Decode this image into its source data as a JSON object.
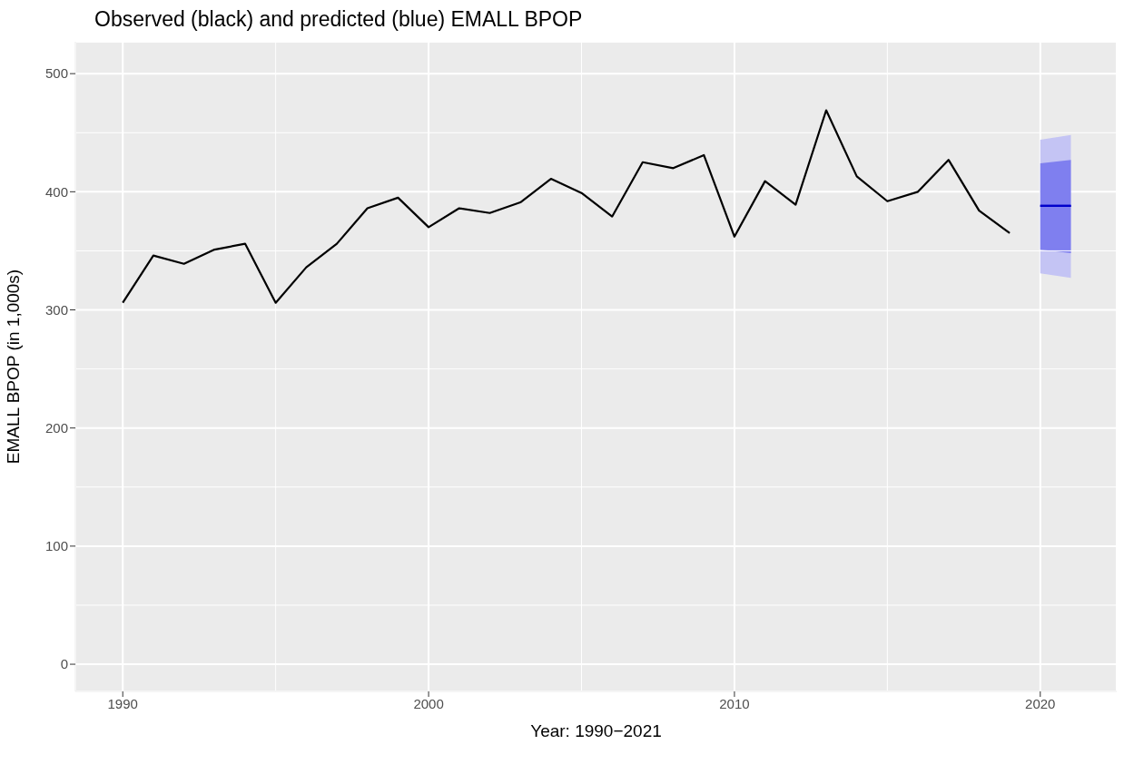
{
  "chart_data": {
    "type": "line",
    "title": "Observed (black) and predicted (blue) EMALL BPOP",
    "xlabel": "Year: 1990−2021",
    "ylabel": "EMALL BPOP (in 1,000s)",
    "xlim": [
      1988.45,
      2022.5
    ],
    "xticks": [
      1990,
      2000,
      2010,
      2020
    ],
    "ylim": [
      -23,
      527
    ],
    "yticks": [
      0,
      100,
      200,
      300,
      400,
      500
    ],
    "grid": true,
    "marker": "none",
    "line_style": "solid",
    "series": [
      {
        "color": "#000000",
        "x": [
          1990,
          1991,
          1992,
          1993,
          1994,
          1995,
          1996,
          1997,
          1998,
          1999,
          2000,
          2001,
          2002,
          2003,
          2004,
          2005,
          2006,
          2007,
          2008,
          2009,
          2010,
          2011,
          2012,
          2013,
          2014,
          2015,
          2016,
          2017,
          2018,
          2019
        ],
        "values": [
          306,
          346,
          339,
          351,
          356,
          306,
          336,
          356,
          386,
          395,
          370,
          386,
          382,
          391,
          411,
          399,
          379,
          425,
          420,
          431,
          362,
          409,
          389,
          469,
          413,
          392,
          400,
          427,
          384,
          365
        ]
      },
      {
        "color": "#0000cc",
        "x": [
          2020,
          2021
        ],
        "values": [
          388,
          388
        ],
        "lower": [
          331,
          327
        ],
        "upper": [
          444,
          448
        ]
      },
      {
        "color": "#0000cc",
        "x": [
          2020,
          2021
        ],
        "values": [
          388,
          388
        ],
        "lower": [
          351,
          348
        ],
        "upper": [
          424,
          427
        ]
      }
    ]
  }
}
